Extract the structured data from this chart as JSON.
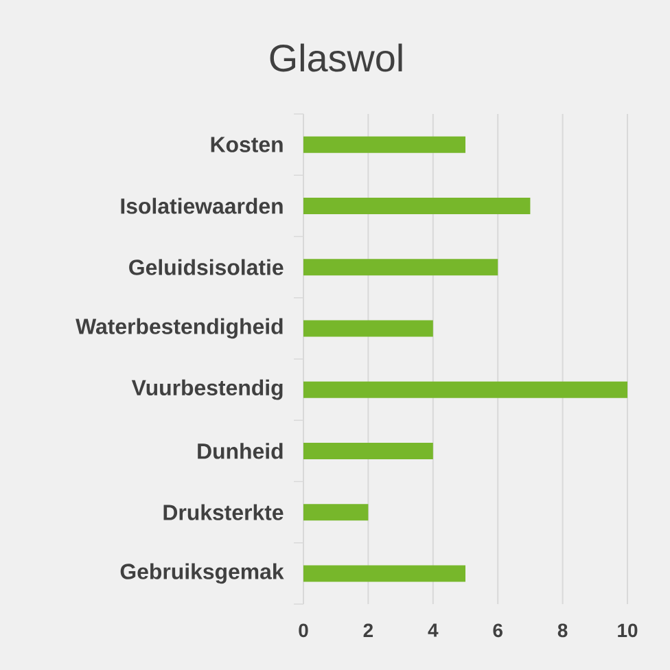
{
  "chart_data": {
    "type": "bar",
    "orientation": "horizontal",
    "title": "Glaswol",
    "categories": [
      "Kosten",
      "Isolatiewaarden",
      "Geluidsisolatie",
      "Waterbestendigheid",
      "Vuurbestendig",
      "Dunheid",
      "Druksterkte",
      "Gebruiksgemak"
    ],
    "values": [
      5,
      7,
      6,
      4,
      10,
      4,
      2,
      5
    ],
    "color": "#77b72b",
    "xlim": [
      0,
      10
    ],
    "xticks": [
      0,
      2,
      4,
      6,
      8,
      10
    ],
    "grid": "x"
  }
}
